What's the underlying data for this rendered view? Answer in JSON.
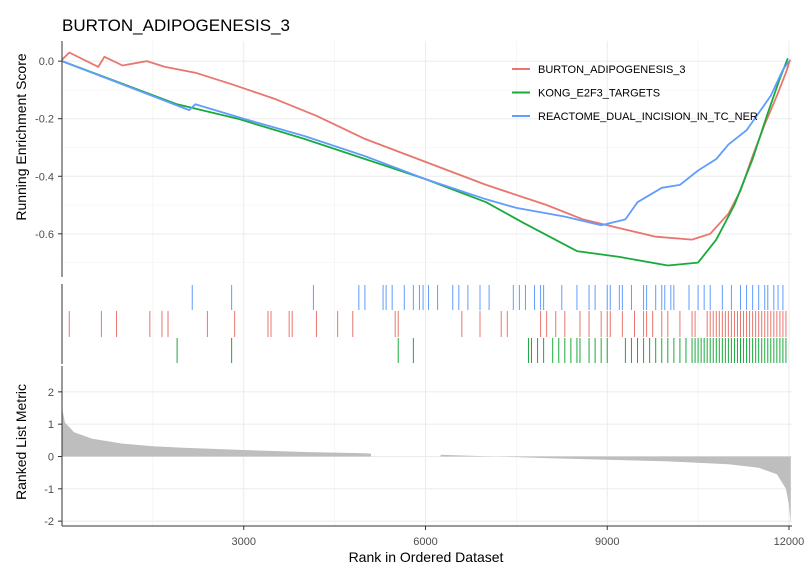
{
  "chart_data": {
    "type": "line",
    "title": "BURTON_ADIPOGENESIS_3",
    "xlabel": "Rank in Ordered Dataset",
    "xlim": [
      0,
      12050
    ],
    "xticks": [
      3000,
      6000,
      9000,
      12000
    ],
    "grid": true,
    "legend_position": "top-right",
    "panels": {
      "enrichment": {
        "ylabel": "Running Enrichment Score",
        "ylim": [
          -0.75,
          0.07
        ],
        "yticks": [
          0.0,
          -0.2,
          -0.4,
          -0.6
        ],
        "ytick_labels": [
          "0.0",
          "-0.2",
          "-0.4",
          "-0.6"
        ]
      },
      "ranked_metric": {
        "ylabel": "Ranked List Metric",
        "ylim": [
          -2.15,
          2.8
        ],
        "yticks": [
          2,
          1,
          0,
          -1,
          -2
        ],
        "ytick_labels": [
          "2",
          "1",
          "0",
          "-1",
          "-2"
        ],
        "fill_color": "#BEBEBE",
        "gap_start": 5100,
        "gap_end": 6250,
        "profile": [
          {
            "x": 0,
            "y": 1.5
          },
          {
            "x": 50,
            "y": 1.05
          },
          {
            "x": 200,
            "y": 0.75
          },
          {
            "x": 500,
            "y": 0.55
          },
          {
            "x": 1000,
            "y": 0.4
          },
          {
            "x": 1500,
            "y": 0.32
          },
          {
            "x": 2000,
            "y": 0.27
          },
          {
            "x": 3000,
            "y": 0.2
          },
          {
            "x": 4000,
            "y": 0.14
          },
          {
            "x": 5000,
            "y": 0.1
          },
          {
            "x": 6300,
            "y": 0.05
          },
          {
            "x": 7000,
            "y": 0.01
          },
          {
            "x": 8000,
            "y": -0.05
          },
          {
            "x": 9000,
            "y": -0.1
          },
          {
            "x": 10000,
            "y": -0.15
          },
          {
            "x": 11000,
            "y": -0.24
          },
          {
            "x": 11500,
            "y": -0.35
          },
          {
            "x": 11800,
            "y": -0.55
          },
          {
            "x": 11950,
            "y": -1.0
          },
          {
            "x": 12000,
            "y": -1.5
          },
          {
            "x": 12030,
            "y": -2.05
          }
        ]
      }
    },
    "series": [
      {
        "name": "BURTON_ADIPOGENESIS_3",
        "color": "#E8766E",
        "points": [
          [
            0,
            0.005
          ],
          [
            120,
            0.03
          ],
          [
            600,
            -0.02
          ],
          [
            700,
            0.015
          ],
          [
            1000,
            -0.015
          ],
          [
            1400,
            0.0
          ],
          [
            1700,
            -0.02
          ],
          [
            2200,
            -0.04
          ],
          [
            2800,
            -0.08
          ],
          [
            3500,
            -0.13
          ],
          [
            4200,
            -0.19
          ],
          [
            5000,
            -0.27
          ],
          [
            6000,
            -0.35
          ],
          [
            7000,
            -0.43
          ],
          [
            8000,
            -0.5
          ],
          [
            8600,
            -0.55
          ],
          [
            9200,
            -0.58
          ],
          [
            9800,
            -0.61
          ],
          [
            10400,
            -0.62
          ],
          [
            10700,
            -0.6
          ],
          [
            11000,
            -0.53
          ],
          [
            11200,
            -0.45
          ],
          [
            11400,
            -0.33
          ],
          [
            11600,
            -0.22
          ],
          [
            11800,
            -0.12
          ],
          [
            11950,
            -0.04
          ],
          [
            12020,
            0.005
          ]
        ]
      },
      {
        "name": "KONG_E2F3_TARGETS",
        "color": "#1AAA3C",
        "points": [
          [
            0,
            0.0
          ],
          [
            1900,
            -0.15
          ],
          [
            2900,
            -0.2
          ],
          [
            4000,
            -0.27
          ],
          [
            5000,
            -0.34
          ],
          [
            6000,
            -0.41
          ],
          [
            7000,
            -0.49
          ],
          [
            7600,
            -0.56
          ],
          [
            8500,
            -0.66
          ],
          [
            9200,
            -0.68
          ],
          [
            10000,
            -0.71
          ],
          [
            10500,
            -0.7
          ],
          [
            10800,
            -0.62
          ],
          [
            11100,
            -0.5
          ],
          [
            11400,
            -0.34
          ],
          [
            11650,
            -0.18
          ],
          [
            11850,
            -0.06
          ],
          [
            11980,
            0.01
          ]
        ]
      },
      {
        "name": "REACTOME_DUAL_INCISION_IN_TC_NER",
        "color": "#619CFF",
        "points": [
          [
            0,
            0.0
          ],
          [
            2100,
            -0.17
          ],
          [
            2200,
            -0.15
          ],
          [
            3000,
            -0.2
          ],
          [
            4000,
            -0.26
          ],
          [
            5000,
            -0.33
          ],
          [
            6000,
            -0.41
          ],
          [
            7000,
            -0.48
          ],
          [
            7500,
            -0.51
          ],
          [
            8300,
            -0.54
          ],
          [
            8900,
            -0.57
          ],
          [
            9300,
            -0.55
          ],
          [
            9500,
            -0.49
          ],
          [
            9900,
            -0.44
          ],
          [
            10200,
            -0.43
          ],
          [
            10500,
            -0.38
          ],
          [
            10800,
            -0.34
          ],
          [
            11000,
            -0.29
          ],
          [
            11300,
            -0.24
          ],
          [
            11500,
            -0.18
          ],
          [
            11700,
            -0.12
          ],
          [
            11900,
            -0.03
          ],
          [
            12000,
            0.0
          ]
        ]
      }
    ],
    "hits": {
      "REACTOME_DUAL_INCISION_IN_TC_NER": [
        2150,
        2800,
        4150,
        4900,
        5000,
        5300,
        5350,
        5450,
        5650,
        5800,
        5900,
        5960,
        6050,
        6200,
        6450,
        6550,
        6700,
        6900,
        7050,
        7450,
        7550,
        7650,
        7800,
        7900,
        7950,
        8250,
        8500,
        8700,
        8800,
        9000,
        9050,
        9200,
        9250,
        9400,
        9600,
        9650,
        9800,
        9900,
        9950,
        10050,
        10100,
        10350,
        10500,
        10600,
        10700,
        10900,
        11050,
        11200,
        11300,
        11400,
        11500,
        11600,
        11650,
        11750,
        11820,
        11900
      ],
      "BURTON_ADIPOGENESIS_3": [
        120,
        650,
        900,
        1450,
        1650,
        1750,
        2400,
        2850,
        3400,
        3450,
        3750,
        3800,
        4200,
        4550,
        4800,
        5500,
        5550,
        6600,
        6900,
        7250,
        7350,
        7900,
        8000,
        8150,
        8300,
        8550,
        8700,
        8900,
        9000,
        9050,
        9250,
        9450,
        9600,
        9650,
        9750,
        9900,
        10000,
        10200,
        10400,
        10450,
        10650,
        10700,
        10750,
        10800,
        10850,
        10900,
        10950,
        11000,
        11050,
        11100,
        11150,
        11200,
        11250,
        11300,
        11350,
        11400,
        11450,
        11500,
        11550,
        11600,
        11650,
        11700,
        11750,
        11800,
        11850,
        11900,
        11950
      ],
      "KONG_E2F3_TARGETS": [
        1900,
        2800,
        5550,
        5800,
        7700,
        7750,
        7850,
        7950,
        8100,
        8200,
        8300,
        8400,
        8500,
        8550,
        8700,
        8800,
        8900,
        9000,
        9300,
        9400,
        9500,
        9600,
        9700,
        9800,
        9900,
        10000,
        10100,
        10200,
        10300,
        10400,
        10450,
        10500,
        10550,
        10600,
        10650,
        10700,
        10750,
        10800,
        10850,
        10900,
        10950,
        11000,
        11050,
        11100,
        11150,
        11200,
        11250,
        11300,
        11350,
        11400,
        11450,
        11500,
        11550,
        11600,
        11650,
        11700,
        11750,
        11800,
        11850,
        11900,
        11950
      ]
    }
  }
}
